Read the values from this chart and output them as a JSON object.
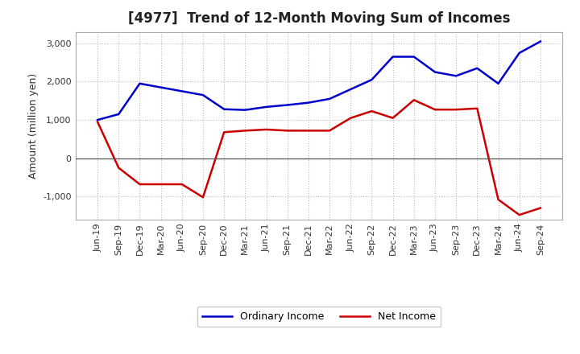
{
  "title": "[4977]  Trend of 12-Month Moving Sum of Incomes",
  "ylabel": "Amount (million yen)",
  "labels": [
    "Jun-19",
    "Sep-19",
    "Dec-19",
    "Mar-20",
    "Jun-20",
    "Sep-20",
    "Dec-20",
    "Mar-21",
    "Jun-21",
    "Sep-21",
    "Dec-21",
    "Mar-22",
    "Jun-22",
    "Sep-22",
    "Dec-22",
    "Mar-23",
    "Jun-23",
    "Sep-23",
    "Dec-23",
    "Mar-24",
    "Jun-24",
    "Sep-24"
  ],
  "ordinary_income": [
    1000,
    1150,
    1950,
    1850,
    1750,
    1650,
    1280,
    1260,
    1340,
    1390,
    1450,
    1550,
    1800,
    2050,
    2650,
    2650,
    2250,
    2150,
    2350,
    1950,
    2750,
    3050
  ],
  "net_income": [
    950,
    -250,
    -680,
    -680,
    -680,
    -1020,
    680,
    720,
    750,
    720,
    720,
    720,
    1050,
    1230,
    1050,
    1520,
    1270,
    1270,
    1300,
    -1080,
    -1480,
    -1300
  ],
  "ordinary_income_color": "#0000cc",
  "net_income_color": "#cc0000",
  "background_color": "#ffffff",
  "plot_bg_color": "#ffffff",
  "grid_color": "#bbbbbb",
  "zero_line_color": "#555555",
  "ylim": [
    -1600,
    3300
  ],
  "yticks": [
    -1000,
    0,
    1000,
    2000,
    3000
  ],
  "legend_ordinary": "Ordinary Income",
  "legend_net": "Net Income",
  "title_fontsize": 12,
  "title_color": "#222222",
  "axis_fontsize": 9,
  "tick_fontsize": 8,
  "legend_fontsize": 9,
  "line_width": 1.8
}
